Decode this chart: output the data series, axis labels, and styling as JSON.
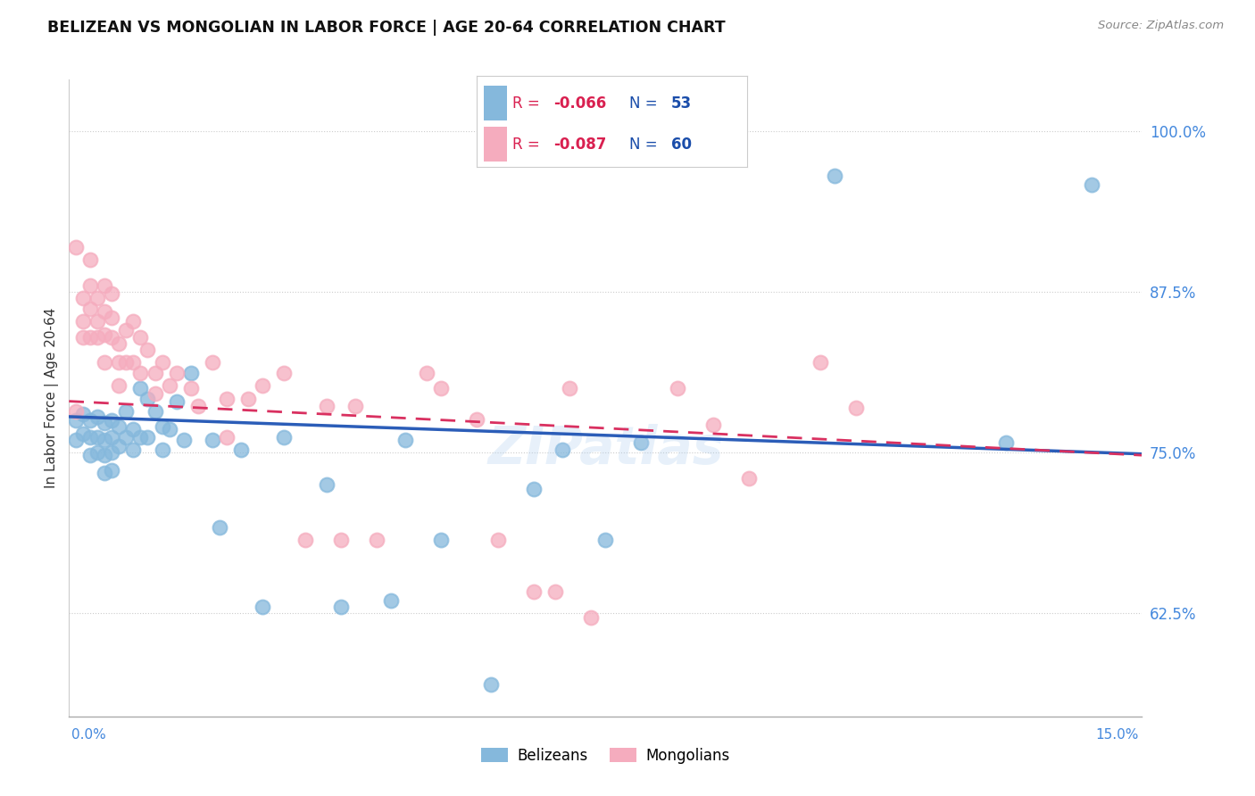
{
  "title": "BELIZEAN VS MONGOLIAN IN LABOR FORCE | AGE 20-64 CORRELATION CHART",
  "source": "Source: ZipAtlas.com",
  "ylabel": "In Labor Force | Age 20-64",
  "ytick_vals": [
    0.625,
    0.75,
    0.875,
    1.0
  ],
  "ytick_labels": [
    "62.5%",
    "75.0%",
    "87.5%",
    "100.0%"
  ],
  "xlim": [
    0.0,
    0.15
  ],
  "ylim": [
    0.545,
    1.04
  ],
  "belizean_color": "#85B8DC",
  "mongolian_color": "#F5ACBE",
  "belizean_line_color": "#2B5DB8",
  "mongolian_line_color": "#D93060",
  "R_color": "#D92050",
  "N_color": "#1A4DAA",
  "watermark": "ZIPatlas",
  "belizean_x": [
    0.001,
    0.001,
    0.002,
    0.002,
    0.003,
    0.003,
    0.003,
    0.004,
    0.004,
    0.004,
    0.005,
    0.005,
    0.005,
    0.005,
    0.006,
    0.006,
    0.006,
    0.006,
    0.007,
    0.007,
    0.008,
    0.008,
    0.009,
    0.009,
    0.01,
    0.01,
    0.011,
    0.011,
    0.012,
    0.013,
    0.013,
    0.014,
    0.015,
    0.016,
    0.017,
    0.02,
    0.021,
    0.024,
    0.027,
    0.03,
    0.036,
    0.038,
    0.045,
    0.047,
    0.052,
    0.059,
    0.065,
    0.069,
    0.075,
    0.08,
    0.107,
    0.131,
    0.143
  ],
  "belizean_y": [
    0.775,
    0.76,
    0.78,
    0.765,
    0.775,
    0.762,
    0.748,
    0.778,
    0.762,
    0.75,
    0.773,
    0.76,
    0.748,
    0.734,
    0.775,
    0.762,
    0.75,
    0.736,
    0.77,
    0.755,
    0.782,
    0.762,
    0.768,
    0.752,
    0.8,
    0.762,
    0.792,
    0.762,
    0.782,
    0.77,
    0.752,
    0.768,
    0.79,
    0.76,
    0.812,
    0.76,
    0.692,
    0.752,
    0.63,
    0.762,
    0.725,
    0.63,
    0.635,
    0.76,
    0.682,
    0.57,
    0.722,
    0.752,
    0.682,
    0.758,
    0.965,
    0.758,
    0.958
  ],
  "mongolian_x": [
    0.001,
    0.001,
    0.002,
    0.002,
    0.002,
    0.003,
    0.003,
    0.003,
    0.003,
    0.004,
    0.004,
    0.004,
    0.005,
    0.005,
    0.005,
    0.005,
    0.006,
    0.006,
    0.006,
    0.007,
    0.007,
    0.007,
    0.008,
    0.008,
    0.009,
    0.009,
    0.01,
    0.01,
    0.011,
    0.012,
    0.012,
    0.013,
    0.014,
    0.015,
    0.017,
    0.018,
    0.02,
    0.022,
    0.022,
    0.025,
    0.027,
    0.03,
    0.033,
    0.036,
    0.038,
    0.04,
    0.043,
    0.05,
    0.052,
    0.057,
    0.06,
    0.065,
    0.068,
    0.07,
    0.073,
    0.085,
    0.09,
    0.095,
    0.105,
    0.11
  ],
  "mongolian_y": [
    0.91,
    0.782,
    0.87,
    0.852,
    0.84,
    0.9,
    0.88,
    0.862,
    0.84,
    0.87,
    0.852,
    0.84,
    0.88,
    0.86,
    0.842,
    0.82,
    0.874,
    0.855,
    0.84,
    0.835,
    0.82,
    0.802,
    0.845,
    0.82,
    0.852,
    0.82,
    0.84,
    0.812,
    0.83,
    0.812,
    0.796,
    0.82,
    0.802,
    0.812,
    0.8,
    0.786,
    0.82,
    0.792,
    0.762,
    0.792,
    0.802,
    0.812,
    0.682,
    0.786,
    0.682,
    0.786,
    0.682,
    0.812,
    0.8,
    0.776,
    0.682,
    0.642,
    0.642,
    0.8,
    0.622,
    0.8,
    0.772,
    0.73,
    0.82,
    0.785
  ],
  "belizean_line_x": [
    0.0,
    0.15
  ],
  "belizean_line_y": [
    0.778,
    0.749
  ],
  "mongolian_line_x": [
    0.0,
    0.15
  ],
  "mongolian_line_y": [
    0.79,
    0.748
  ]
}
